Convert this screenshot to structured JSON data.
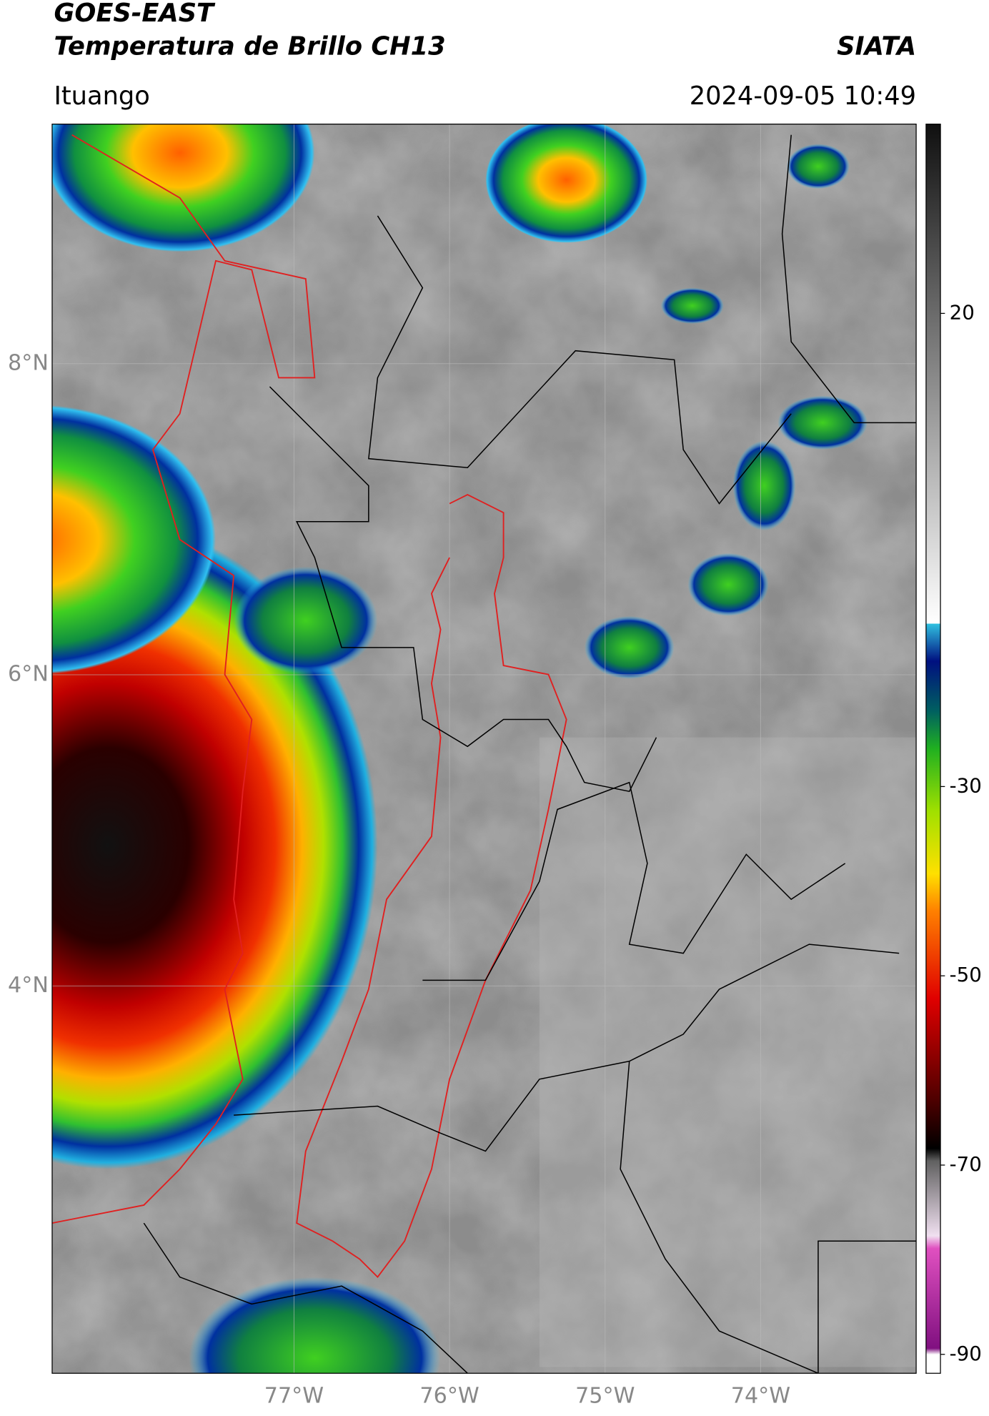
{
  "header": {
    "title": "GOES-EAST",
    "subtitle": "Temperatura de Brillo CH13",
    "source": "SIATA",
    "location": "Ituango",
    "datetime": "2024-09-05 10:49"
  },
  "map": {
    "xlim": [
      -78.555,
      -73.0
    ],
    "ylim": [
      1.51,
      9.54
    ],
    "xticks": [
      {
        "value": -77,
        "label": "77°W"
      },
      {
        "value": -76,
        "label": "76°W"
      },
      {
        "value": -75,
        "label": "75°W"
      },
      {
        "value": -74,
        "label": "74°W"
      }
    ],
    "yticks": [
      {
        "value": 4,
        "label": "4°N"
      },
      {
        "value": 6,
        "label": "6°N"
      },
      {
        "value": 8,
        "label": "8°N"
      }
    ],
    "grid": true
  },
  "colorbar": {
    "lim": [
      -92,
      40
    ],
    "ticks": [
      20,
      -30,
      -50,
      -70,
      -90
    ]
  }
}
